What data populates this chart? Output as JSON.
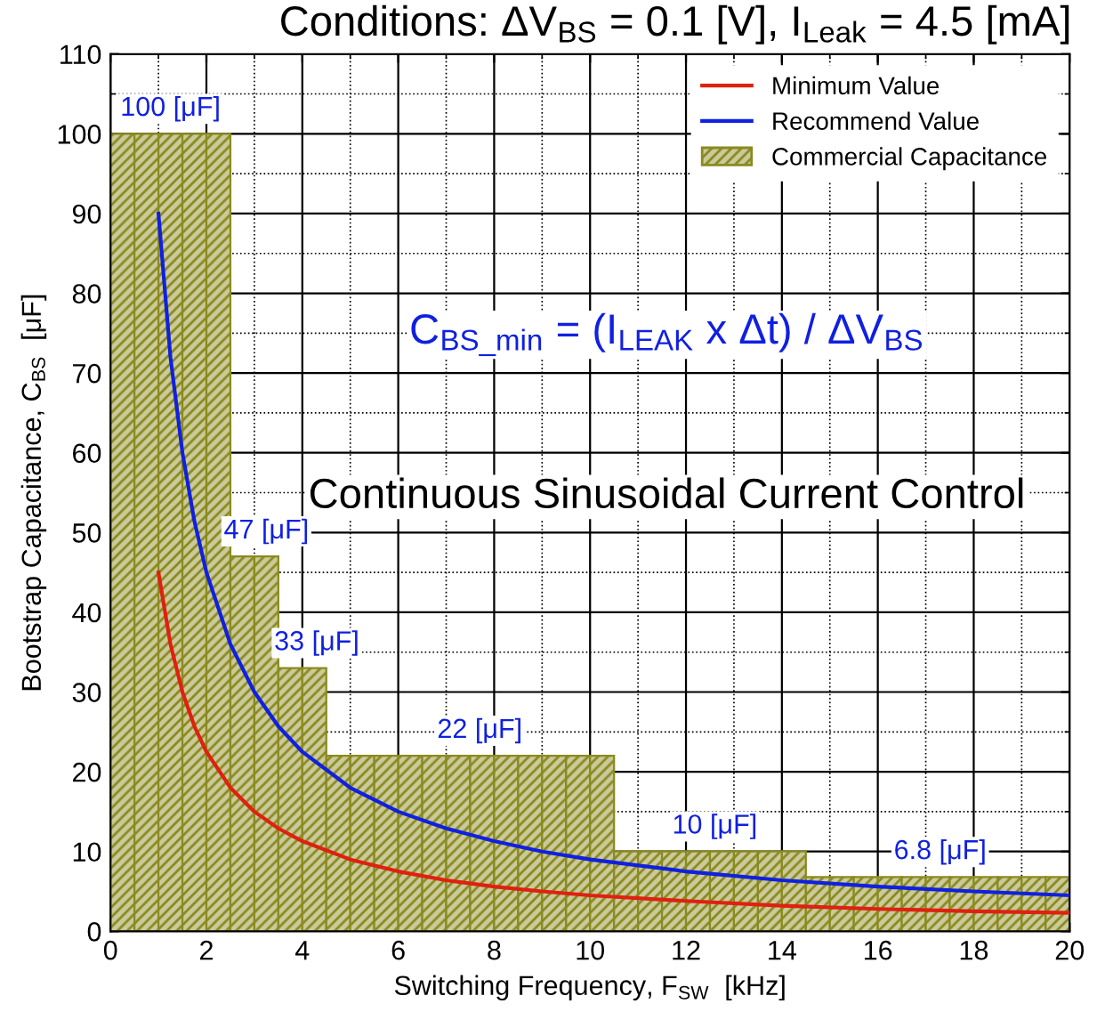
{
  "chart_data": {
    "type": "line",
    "title": "Conditions: ΔV$_{BS}$ = 0.1 [V], I$_{Leak}$ = 4.5 [mA]",
    "xlabel": "Switching Frequency, F$_{SW}$  [kHz]",
    "ylabel": "Bootstrap Capacitance, C$_{BS}$  [μF]",
    "xlim": [
      0,
      20
    ],
    "xticks": [
      0,
      2,
      4,
      6,
      8,
      10,
      12,
      14,
      16,
      18,
      20
    ],
    "ylim": [
      0,
      110
    ],
    "yticks": [
      0,
      10,
      20,
      30,
      40,
      50,
      60,
      70,
      80,
      90,
      100,
      110
    ],
    "grid": true,
    "legend": "top right",
    "series": [
      {
        "name": "Minimum Value",
        "color": "#e02010",
        "x": [
          1,
          1.25,
          1.5,
          1.75,
          2,
          2.5,
          3,
          3.5,
          4,
          5,
          6,
          7,
          8,
          9,
          10,
          12,
          14,
          16,
          18,
          20
        ],
        "values": [
          45,
          36,
          30,
          25.7,
          22.5,
          18,
          15,
          12.9,
          11.3,
          9,
          7.5,
          6.4,
          5.6,
          5,
          4.5,
          3.8,
          3.2,
          2.8,
          2.5,
          2.3
        ]
      },
      {
        "name": "Recommend Value",
        "color": "#1020e0",
        "x": [
          1,
          1.25,
          1.5,
          1.75,
          2,
          2.5,
          3,
          3.5,
          4,
          5,
          6,
          7,
          8,
          9,
          10,
          12,
          14,
          16,
          18,
          20
        ],
        "values": [
          90,
          72,
          60,
          51.4,
          45,
          36,
          30,
          25.7,
          22.5,
          18,
          15,
          12.9,
          11.3,
          10,
          9,
          7.5,
          6.4,
          5.6,
          5,
          4.5
        ]
      },
      {
        "type": "histogram",
        "name": "Commercial Capacitance",
        "color": "#8a8a20",
        "bins": [
          0,
          0.5,
          1,
          1.5,
          2,
          2.5,
          3,
          3.5,
          4,
          4.5,
          5,
          5.5,
          6,
          6.5,
          7,
          7.5,
          8,
          8.5,
          9,
          9.5,
          10,
          10.5,
          11,
          11.5,
          12,
          12.5,
          13,
          13.5,
          14,
          14.5,
          15,
          15.5,
          16,
          16.5,
          17,
          17.5,
          18,
          18.5,
          19,
          19.5,
          20
        ],
        "values": [
          100,
          100,
          100,
          100,
          100,
          47,
          47,
          33,
          33,
          22,
          22,
          22,
          22,
          22,
          22,
          22,
          22,
          22,
          22,
          22,
          22,
          10,
          10,
          10,
          10,
          10,
          10,
          10,
          10,
          6.8,
          6.8,
          6.8,
          6.8,
          6.8,
          6.8,
          6.8,
          6.8,
          6.8,
          6.8,
          6.8
        ]
      }
    ],
    "annotations": [
      {
        "text": "100 [μF]",
        "x": 1.25,
        "y": 100
      },
      {
        "text": "47 [μF]",
        "x": 3.25,
        "y": 47
      },
      {
        "text": "33 [μF]",
        "x": 4.3,
        "y": 33
      },
      {
        "text": "22 [μF]",
        "x": 7.7,
        "y": 22
      },
      {
        "text": "10 [μF]",
        "x": 12.6,
        "y": 10
      },
      {
        "text": "6.8 [μF]",
        "x": 17.3,
        "y": 6.8
      },
      "C$_{BS_min}$ = (I$_{LEAK}$ x Δt) / ΔV$_{BS}$",
      "Continuous Sinusoidal Current Control"
    ]
  }
}
